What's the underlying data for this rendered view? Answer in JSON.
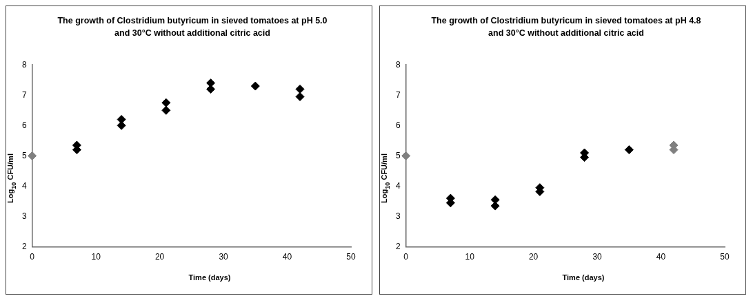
{
  "chart_data": [
    {
      "type": "scatter",
      "title": "The growth of Clostridium butyricum in sieved tomatoes at pH 5.0 and 30°C without additional citric acid",
      "xlabel": "Time (days)",
      "ylabel": "Log$_{10}$ CFU/ml",
      "x": [
        0,
        7,
        7,
        14,
        14,
        21,
        21,
        28,
        28,
        35,
        42,
        42
      ],
      "values": [
        5,
        5.35,
        5.2,
        6.2,
        6.0,
        6.75,
        6.5,
        7.4,
        7.2,
        7.3,
        7.2,
        6.95
      ],
      "colors": [
        "#808080",
        "#000000",
        "#000000",
        "#000000",
        "#000000",
        "#000000",
        "#000000",
        "#000000",
        "#000000",
        "#000000",
        "#000000",
        "#000000"
      ],
      "marker": "diamond",
      "xlim": [
        0,
        50
      ],
      "xticks": [
        0,
        10,
        20,
        30,
        40,
        50
      ],
      "ylim": [
        2,
        8
      ],
      "yticks": [
        2,
        3,
        4,
        5,
        6,
        7,
        8
      ],
      "grid": false,
      "legend": false
    },
    {
      "type": "scatter",
      "title": "The growth of Clostridium butyricum in sieved tomatoes at pH 4.8 and 30°C without additional citric acid",
      "xlabel": "Time (days)",
      "ylabel": "Log$_{10}$ CFU/ml",
      "x": [
        0,
        7,
        7,
        14,
        14,
        21,
        21,
        28,
        28,
        35,
        42,
        42
      ],
      "values": [
        5,
        3.6,
        3.45,
        3.55,
        3.35,
        3.95,
        3.82,
        5.1,
        4.95,
        5.2,
        5.35,
        5.2
      ],
      "colors": [
        "#808080",
        "#000000",
        "#000000",
        "#000000",
        "#000000",
        "#000000",
        "#000000",
        "#000000",
        "#000000",
        "#000000",
        "#808080",
        "#808080"
      ],
      "marker": "diamond",
      "xlim": [
        0,
        50
      ],
      "xticks": [
        0,
        10,
        20,
        30,
        40,
        50
      ],
      "ylim": [
        2,
        8
      ],
      "yticks": [
        2,
        3,
        4,
        5,
        6,
        7,
        8
      ],
      "grid": false,
      "legend": false
    }
  ]
}
